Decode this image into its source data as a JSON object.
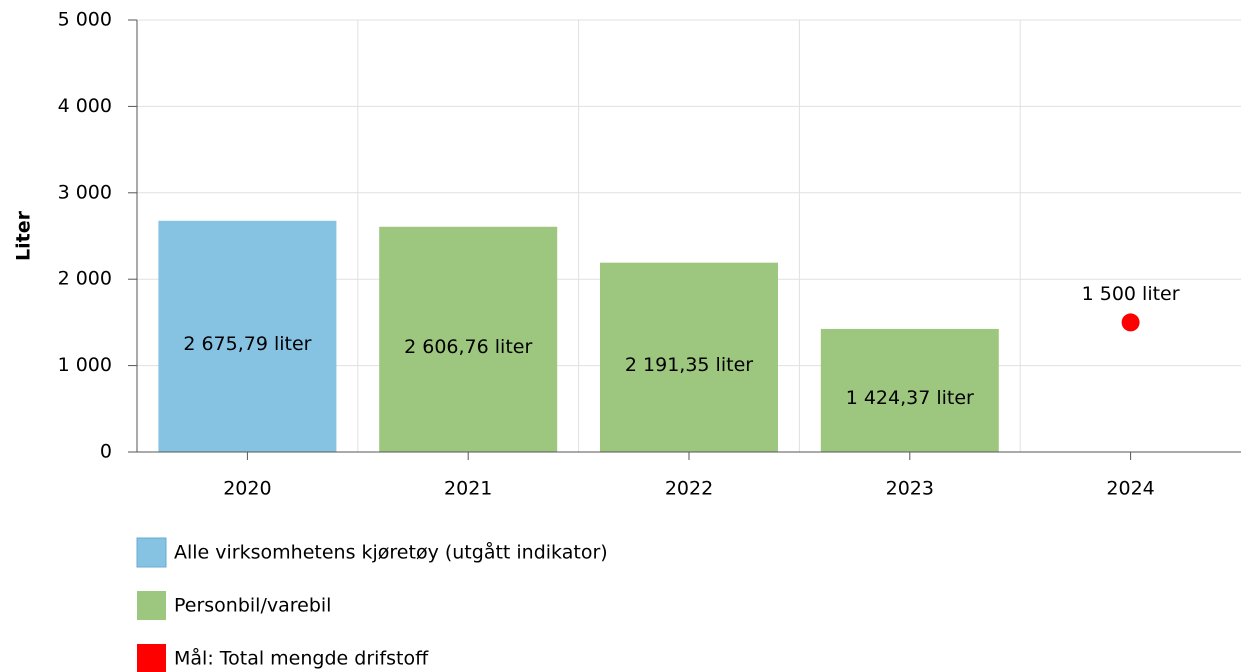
{
  "chart_data": {
    "type": "bar",
    "y_label": "Liter",
    "categories": [
      "2020",
      "2021",
      "2022",
      "2023",
      "2024"
    ],
    "series": [
      {
        "name": "Alle virksomhetens kjøretøy (utgått indikator)",
        "color": "#86c3e3",
        "type": "bar",
        "values": [
          2675.79,
          null,
          null,
          null,
          null
        ],
        "value_labels": [
          "2 675,79 liter",
          null,
          null,
          null,
          null
        ]
      },
      {
        "name": "Personbil/varebil",
        "color": "#9dc67f",
        "type": "bar",
        "values": [
          null,
          2606.76,
          2191.35,
          1424.37,
          null
        ],
        "value_labels": [
          null,
          "2 606,76 liter",
          "2 191,35 liter",
          "1 424,37 liter",
          null
        ]
      },
      {
        "name": "Mål: Total mengde drifstoff",
        "color": "#ff0000",
        "type": "scatter",
        "values": [
          null,
          null,
          null,
          null,
          1500
        ],
        "value_labels": [
          null,
          null,
          null,
          null,
          "1 500 liter"
        ]
      }
    ],
    "ylim": [
      0,
      5000
    ],
    "yticks": [
      0,
      {
        "value": 1000,
        "label": "1 000"
      },
      {
        "value": 2000,
        "label": "2 000"
      },
      {
        "value": 3000,
        "label": "3 000"
      },
      {
        "value": 4000,
        "label": "4 000"
      },
      {
        "value": 5000,
        "label": "5 000"
      }
    ],
    "grid": true
  }
}
